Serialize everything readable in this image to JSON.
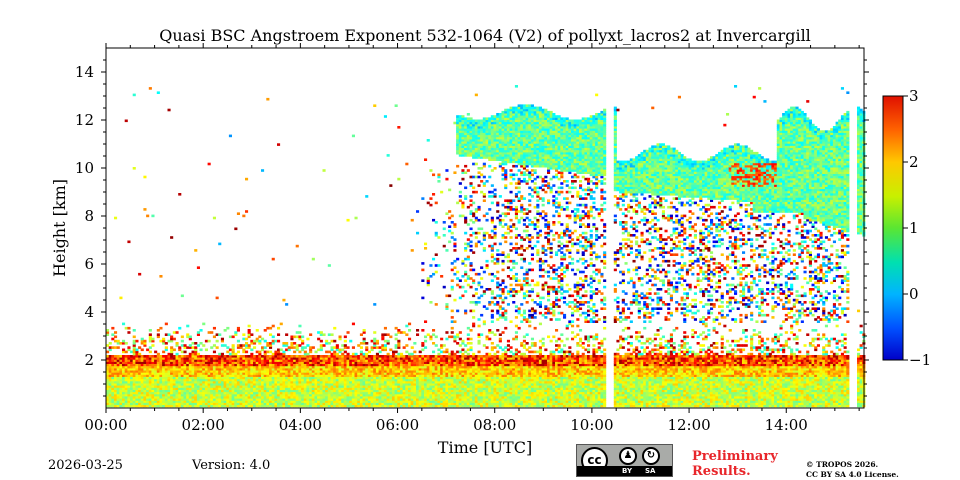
{
  "chart_data": {
    "type": "heatmap",
    "title": "Quasi BSC Angstroem Exponent 532-1064 (V2) of pollyxt_lacros2 at Invercargill",
    "xlabel": "Time [UTC]",
    "ylabel": "Height [km]",
    "x_unit": "hours UTC",
    "xlim": [
      0,
      15.6
    ],
    "ylim": [
      0,
      15
    ],
    "xticks": [
      0,
      2,
      4,
      6,
      8,
      10,
      12,
      14
    ],
    "xtick_labels": [
      "00:00",
      "02:00",
      "04:00",
      "06:00",
      "08:00",
      "10:00",
      "12:00",
      "14:00"
    ],
    "yticks": [
      2,
      4,
      6,
      8,
      10,
      12,
      14
    ],
    "ytick_labels": [
      "2",
      "4",
      "6",
      "8",
      "10",
      "12",
      "14"
    ],
    "colorbar": {
      "min": -1,
      "max": 3,
      "ticks": [
        3,
        2,
        1,
        0,
        -1
      ],
      "tick_labels": [
        "3",
        "2",
        "1",
        "0",
        "−1"
      ],
      "colormap": "jet"
    },
    "data_gaps_hours": [
      [
        10.25,
        10.42
      ],
      [
        15.25,
        15.4
      ]
    ],
    "features": [
      {
        "name": "boundary layer",
        "height_km": [
          0,
          2
        ],
        "time_h": [
          0,
          15.6
        ],
        "typical_value": 1.1
      },
      {
        "name": "aerosol above boundary layer",
        "height_km": [
          2,
          3.5
        ],
        "time_h": [
          0,
          15.6
        ],
        "typical_value": 2.0
      },
      {
        "name": "cirrus cloud",
        "height_km": [
          8.5,
          12.8
        ],
        "time_h": [
          7.2,
          15.6
        ],
        "typical_value": 0.9
      }
    ]
  },
  "footer": {
    "date": "2026-03-25",
    "version": "Version: 4.0",
    "preliminary_line1": "Preliminary",
    "preliminary_line2": "Results.",
    "copyright_line1": "© TROPOS 2026.",
    "copyright_line2": "CC BY SA 4.0 License.",
    "license_badge": {
      "by": "BY",
      "sa": "SA",
      "cc": "cc"
    }
  }
}
